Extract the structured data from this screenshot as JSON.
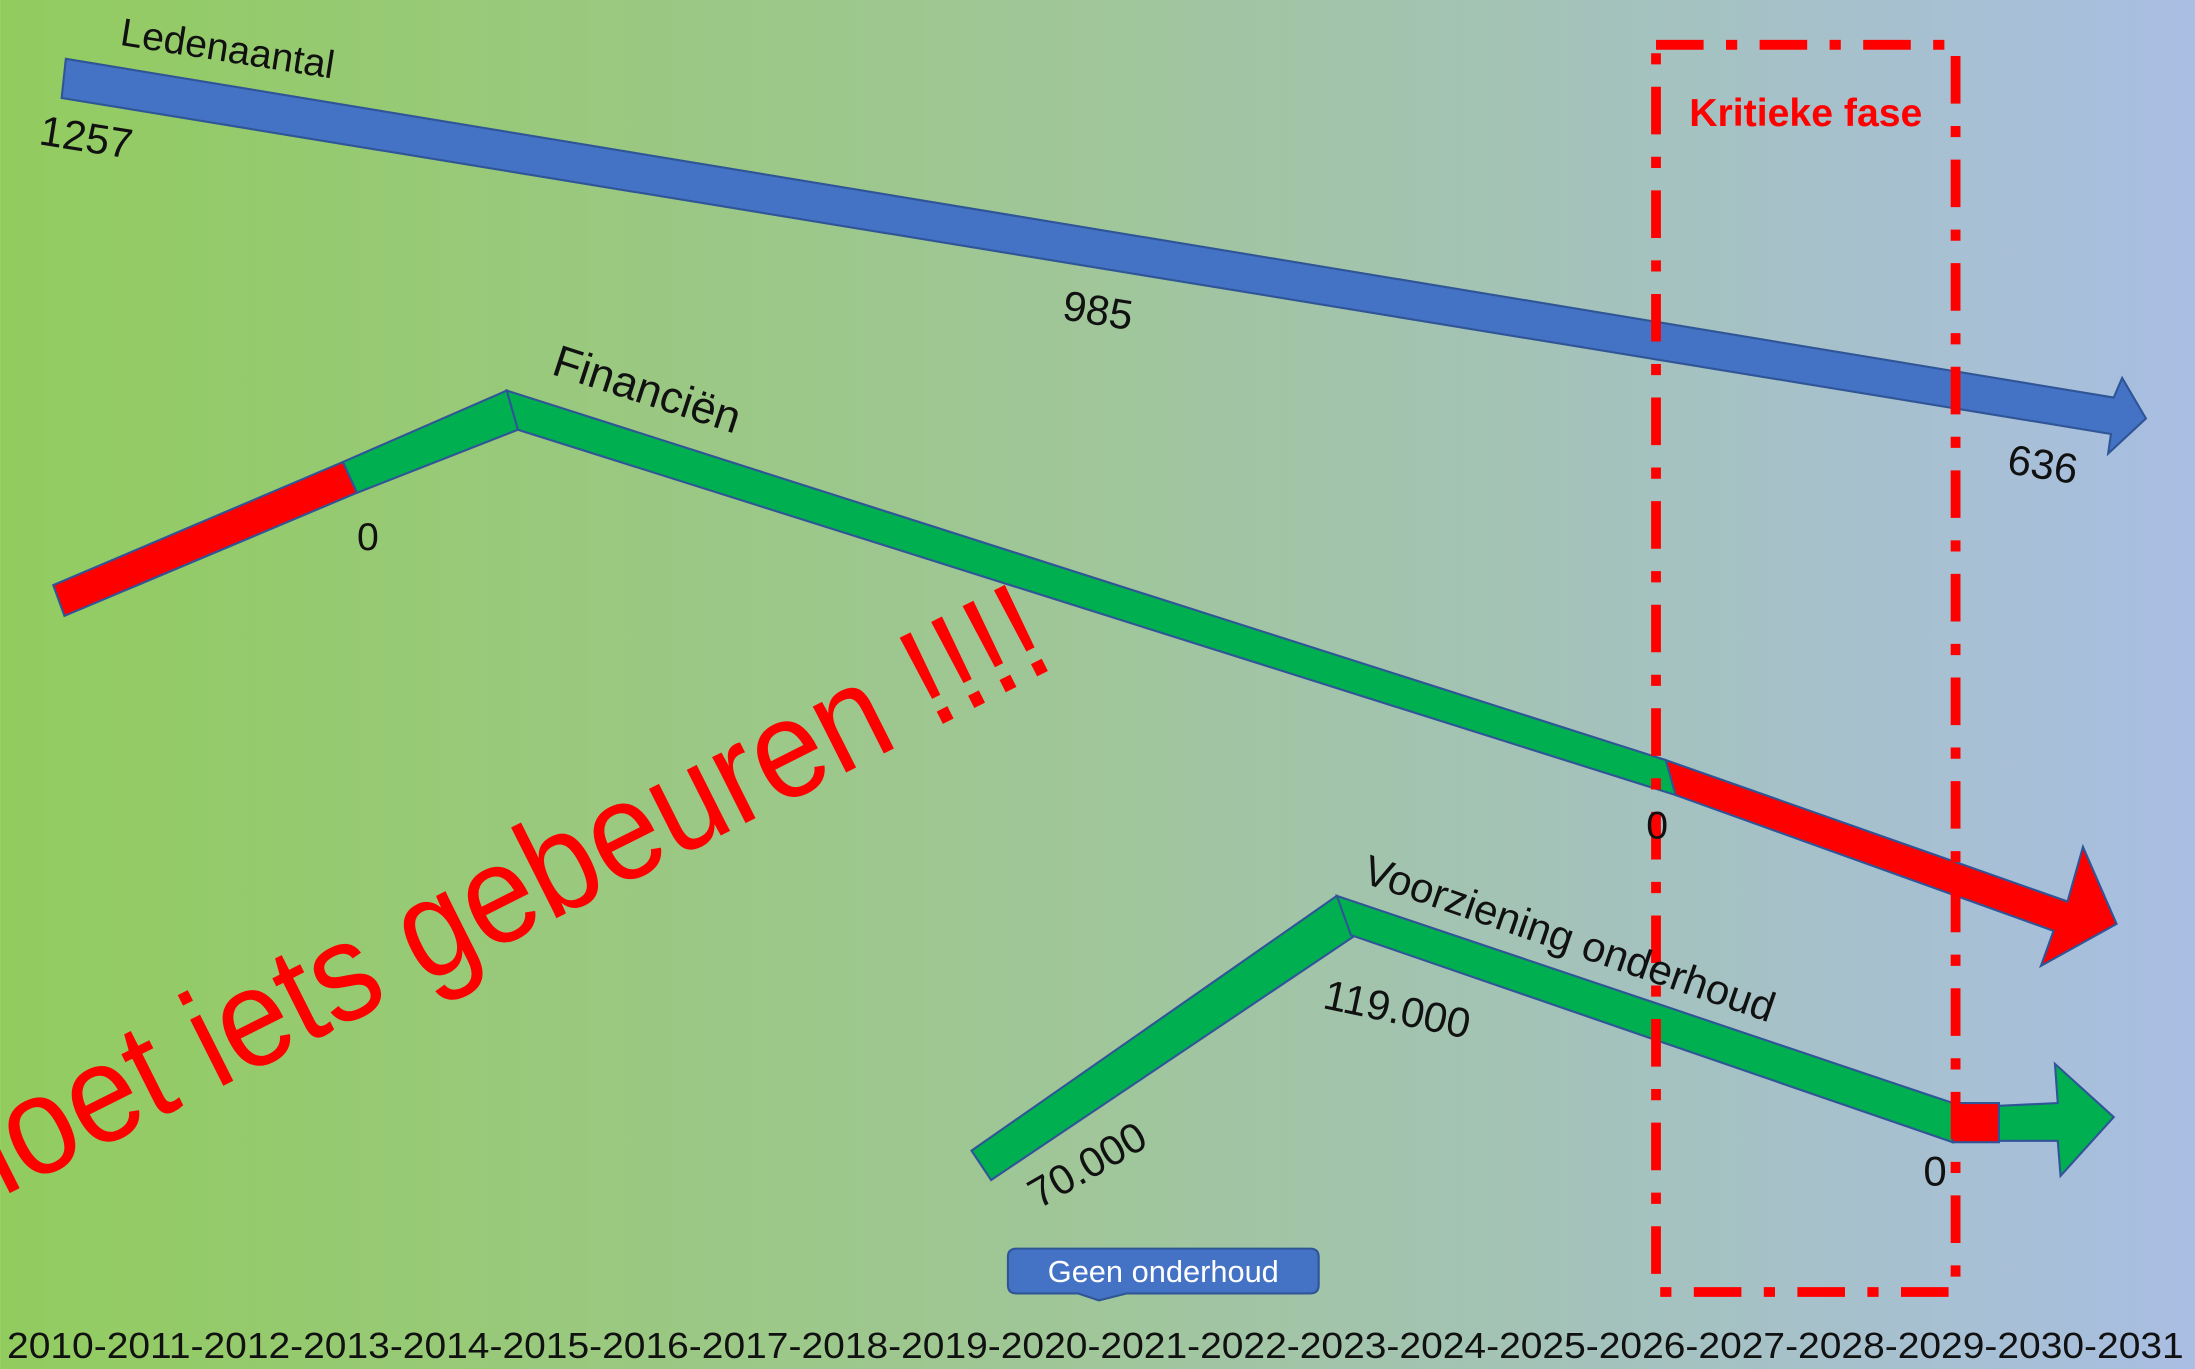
{
  "ledenaantal": {
    "label": "Ledenaantal",
    "start": "1257",
    "middle": "985",
    "end": "636"
  },
  "financien": {
    "label": "Financiën",
    "first_zero": "0",
    "second_zero": "0"
  },
  "voorziening": {
    "label": "Voorziening onderhoud",
    "start": "70.000",
    "peak": "119.000",
    "end": "0"
  },
  "critical_phase": "Kritieke fase",
  "callout": "Geen onderhoud",
  "warning": "moet iets gebeuren !!!!",
  "timeline": "2010-2011-2012-2013-2014-2015-2016-2017-2018-2019-2020-2021-2022-2023-2024-2025-2026-2027-2028-2029-2030-2031"
}
